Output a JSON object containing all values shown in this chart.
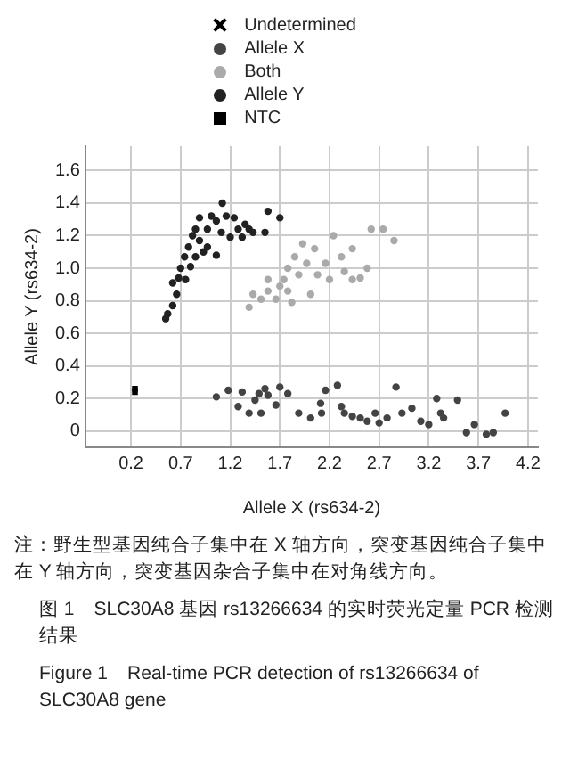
{
  "chart_data": {
    "type": "scatter",
    "xlabel": "Allele X (rs634-2)",
    "ylabel": "Allele Y (rs634-2)",
    "xlim": [
      -0.26,
      4.3
    ],
    "xticks": [
      0.2,
      0.7,
      1.2,
      1.7,
      2.2,
      2.7,
      3.2,
      3.7,
      4.2
    ],
    "ylim": [
      -0.1,
      1.75
    ],
    "yticks": [
      0,
      0.2,
      0.4,
      0.6,
      0.8,
      {
        "value": 1,
        "label": "1.0"
      },
      1.2,
      1.4,
      1.6
    ],
    "grid": true,
    "legend": "top",
    "series": [
      {
        "name": "Undetermined",
        "color": "#000000",
        "marker": "cross"
      },
      {
        "name": "Allele X",
        "color": "#444444",
        "marker": "circle",
        "x": [
          1.06,
          1.18,
          1.28,
          1.32,
          1.39,
          1.45,
          1.49,
          1.55,
          1.58,
          1.51,
          1.66,
          1.7,
          1.78,
          1.89,
          2.01,
          2.12,
          2.11,
          2.16,
          2.28,
          2.32,
          2.35,
          2.43,
          2.51,
          2.58,
          2.66,
          2.7,
          2.78,
          2.87,
          2.93,
          3.03,
          3.12,
          3.2,
          3.28,
          3.32,
          3.35,
          3.49,
          3.58,
          3.66,
          3.78,
          3.85,
          3.97
        ],
        "values": [
          0.21,
          0.25,
          0.15,
          0.24,
          0.11,
          0.19,
          0.23,
          0.26,
          0.22,
          0.11,
          0.16,
          0.27,
          0.23,
          0.11,
          0.08,
          0.11,
          0.17,
          0.25,
          0.28,
          0.15,
          0.11,
          0.09,
          0.08,
          0.06,
          0.11,
          0.05,
          0.08,
          0.27,
          0.11,
          0.14,
          0.06,
          0.04,
          0.2,
          0.11,
          0.08,
          0.19,
          -0.01,
          0.04,
          -0.02,
          -0.01,
          0.11
        ]
      },
      {
        "name": "Both",
        "color": "#aaaaaa",
        "marker": "circle",
        "x": [
          1.39,
          1.43,
          1.51,
          1.58,
          1.66,
          1.7,
          1.74,
          1.78,
          1.85,
          1.89,
          1.97,
          2.05,
          2.08,
          2.16,
          2.24,
          2.32,
          2.35,
          2.43,
          2.51,
          2.58,
          2.62,
          2.74,
          2.85,
          1.78,
          1.58,
          2.01,
          2.2,
          1.93,
          1.82,
          2.43
        ],
        "values": [
          0.76,
          0.84,
          0.81,
          0.86,
          0.81,
          0.89,
          0.93,
          1.0,
          1.07,
          0.96,
          1.03,
          1.12,
          0.96,
          1.03,
          1.2,
          1.07,
          0.98,
          1.12,
          0.94,
          1.0,
          1.24,
          1.24,
          1.17,
          0.86,
          0.93,
          0.84,
          0.93,
          1.15,
          0.79,
          0.93
        ]
      },
      {
        "name": "Allele Y",
        "color": "#222222",
        "marker": "circle",
        "x": [
          0.55,
          0.57,
          0.62,
          0.66,
          0.62,
          0.68,
          0.7,
          0.75,
          0.74,
          0.78,
          0.82,
          0.85,
          0.89,
          0.93,
          0.97,
          1.01,
          1.06,
          1.12,
          1.11,
          1.16,
          1.24,
          1.28,
          1.32,
          1.35,
          1.39,
          1.43,
          0.85,
          0.8,
          0.89,
          1.2,
          1.55,
          1.58,
          1.7,
          1.06,
          0.97
        ],
        "values": [
          0.69,
          0.72,
          0.77,
          0.84,
          0.91,
          0.94,
          1.0,
          0.93,
          1.07,
          1.13,
          1.2,
          1.24,
          1.17,
          1.1,
          1.24,
          1.32,
          1.29,
          1.4,
          1.22,
          1.32,
          1.31,
          1.24,
          1.19,
          1.27,
          1.24,
          1.22,
          1.07,
          1.01,
          1.31,
          1.19,
          1.22,
          1.35,
          1.31,
          1.08,
          1.13
        ]
      },
      {
        "name": "NTC",
        "color": "#000000",
        "marker": "square",
        "x": [
          0.24,
          0.24
        ],
        "values": [
          0.26,
          0.24
        ]
      }
    ],
    "annotations": [
      "注：野生型基因纯合子集中在 X 轴方向，突变基因纯合子集中在 Y 轴方向，突变基因杂合子集中在对角线方向。",
      "图 1　SLC30A8 基因 rs13266634 的实时荧光定量 PCR 检测结果",
      "Figure 1　Real-time PCR detection of rs13266634 of SLC30A8 gene"
    ]
  }
}
